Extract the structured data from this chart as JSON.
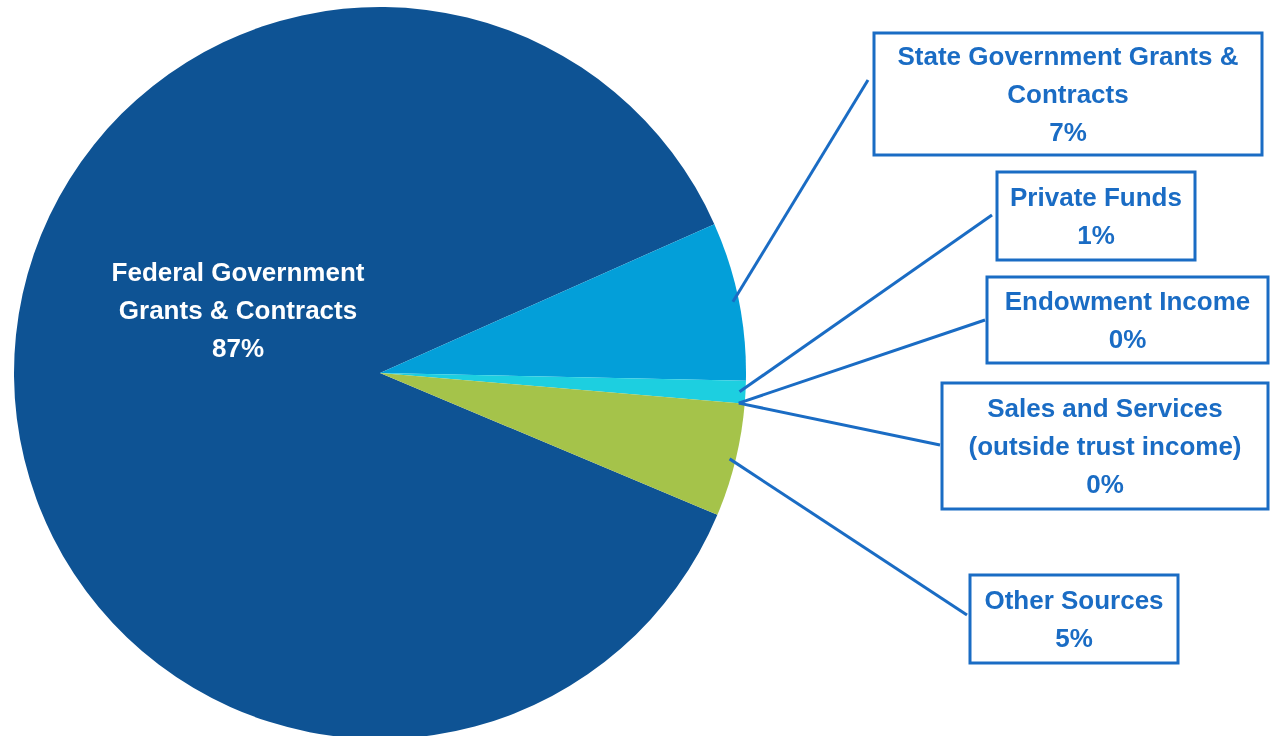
{
  "chart_data": {
    "type": "pie",
    "categories": [
      "Federal Government Grants & Contracts",
      "State Government Grants & Contracts",
      "Private Funds",
      "Endowment Income",
      "Sales and Services (outside trust income)",
      "Other Sources"
    ],
    "values": [
      87,
      7,
      1,
      0,
      0,
      5
    ],
    "value_labels": [
      "87%",
      "7%",
      "1%",
      "0%",
      "0%",
      "5%"
    ],
    "colors": [
      "#0e5394",
      "#039fd9",
      "#1dcfe0",
      "#5fc7e8",
      "#b8d870",
      "#a5c34a"
    ]
  }
}
